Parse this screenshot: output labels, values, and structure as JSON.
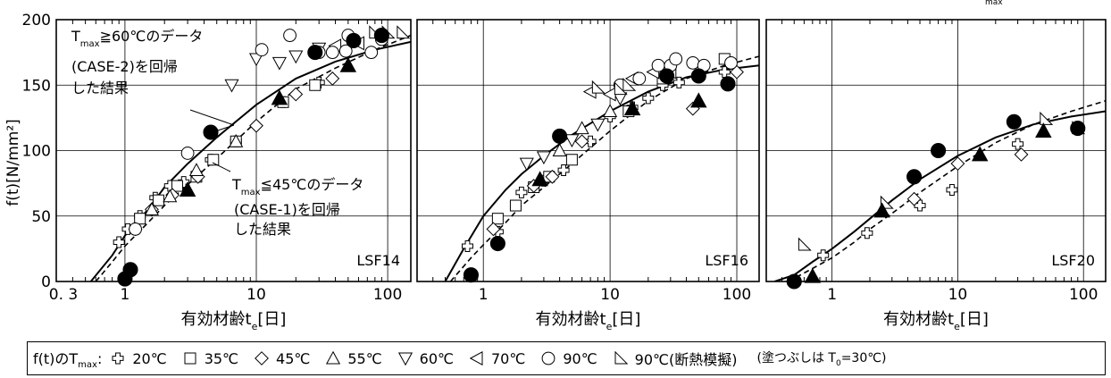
{
  "chart_data": [
    {
      "type": "scatter",
      "panel_label": "LSF14",
      "xscale": "log",
      "xlim": [
        0.3,
        150
      ],
      "ylim": [
        0,
        200
      ],
      "xticks": [
        "0. 3",
        "1",
        "10",
        "100"
      ],
      "yticks": [
        "0",
        "50",
        "100",
        "150",
        "200"
      ],
      "ylabel": "f(t)[N/mm²]",
      "xlabel": "有効材齢t_e[日]",
      "grid": true,
      "curve_case2": [
        [
          0.55,
          0
        ],
        [
          0.8,
          20
        ],
        [
          1,
          35
        ],
        [
          1.5,
          55
        ],
        [
          2,
          72
        ],
        [
          3,
          90
        ],
        [
          5,
          110
        ],
        [
          10,
          135
        ],
        [
          20,
          155
        ],
        [
          40,
          168
        ],
        [
          80,
          177
        ],
        [
          150,
          183
        ]
      ],
      "curve_case1": [
        [
          0.6,
          0
        ],
        [
          0.8,
          15
        ],
        [
          1,
          27
        ],
        [
          1.5,
          45
        ],
        [
          2,
          58
        ],
        [
          3,
          74
        ],
        [
          5,
          94
        ],
        [
          10,
          122
        ],
        [
          20,
          147
        ],
        [
          40,
          163
        ],
        [
          80,
          177
        ],
        [
          150,
          188
        ]
      ],
      "series": [
        {
          "temp": "20℃",
          "marker": "cross",
          "points": [
            [
              0.9,
              30
            ],
            [
              1.05,
              40
            ],
            [
              1.3,
              50
            ],
            [
              1.7,
              64
            ],
            [
              2.2,
              73
            ],
            [
              2.8,
              76
            ],
            [
              4.5,
              93
            ],
            [
              7,
              107
            ],
            [
              16,
              137
            ],
            [
              30,
              152
            ]
          ]
        },
        {
          "temp": "35℃",
          "marker": "square",
          "points": [
            [
              1.3,
              48
            ],
            [
              1.8,
              62
            ],
            [
              2.5,
              73
            ],
            [
              3.5,
              80
            ],
            [
              4.7,
              93
            ],
            [
              7,
              107
            ],
            [
              16,
              137
            ],
            [
              28,
              150
            ]
          ]
        },
        {
          "temp": "45℃",
          "marker": "diamond",
          "points": [
            [
              1.2,
              40
            ],
            [
              1.6,
              55
            ],
            [
              2.3,
              66
            ],
            [
              3.6,
              80
            ],
            [
              10,
              119
            ],
            [
              20,
              143
            ],
            [
              38,
              155
            ]
          ]
        },
        {
          "temp": "55℃",
          "marker": "triangle-up",
          "points": [
            [
              1.6,
              55
            ],
            [
              2.2,
              65
            ],
            [
              3.5,
              85
            ],
            [
              7,
              107
            ]
          ]
        },
        {
          "temp": "60℃",
          "marker": "triangle-down",
          "points": [
            [
              6.5,
              150
            ],
            [
              10,
              170
            ],
            [
              15,
              167
            ],
            [
              20,
              172
            ],
            [
              30,
              178
            ]
          ]
        },
        {
          "temp": "70℃",
          "marker": "triangle-left",
          "points": [
            [
              40,
              180
            ],
            [
              60,
              182
            ]
          ]
        },
        {
          "temp": "90℃",
          "marker": "circle",
          "points": [
            [
              1.2,
              40
            ],
            [
              3,
              98
            ],
            [
              11,
              177
            ],
            [
              18,
              188
            ],
            [
              30,
              175
            ],
            [
              38,
              175
            ],
            [
              48,
              176
            ],
            [
              50,
              188
            ],
            [
              75,
              175
            ],
            [
              90,
              185
            ]
          ]
        },
        {
          "temp": "90℃(断熱模擬)",
          "marker": "triangle-corner",
          "points": [
            [
              80,
              190
            ],
            [
              100,
              190
            ],
            [
              130,
              190
            ]
          ]
        },
        {
          "temp": "90℃ filled",
          "marker": "filled-circle",
          "points": [
            [
              1,
              2
            ],
            [
              1.1,
              9
            ],
            [
              4.5,
              114
            ],
            [
              28,
              175
            ],
            [
              55,
              184
            ],
            [
              90,
              188
            ]
          ]
        },
        {
          "temp": "55℃ filled",
          "marker": "filled-triangle",
          "points": [
            [
              3,
              70
            ],
            [
              15,
              140
            ],
            [
              50,
              165
            ]
          ]
        }
      ]
    },
    {
      "type": "scatter",
      "panel_label": "LSF16",
      "xscale": "log",
      "xlim": [
        0.3,
        150
      ],
      "ylim": [
        0,
        200
      ],
      "xticks": [
        "1",
        "10",
        "100"
      ],
      "xlabel": "有効材齢t_e[日]",
      "grid": true,
      "curve_case2": [
        [
          0.5,
          0
        ],
        [
          0.7,
          25
        ],
        [
          1,
          50
        ],
        [
          1.5,
          70
        ],
        [
          2,
          82
        ],
        [
          3,
          96
        ],
        [
          5,
          112
        ],
        [
          10,
          130
        ],
        [
          20,
          145
        ],
        [
          40,
          156
        ],
        [
          80,
          162
        ],
        [
          150,
          165
        ]
      ],
      "curve_case1": [
        [
          0.55,
          0
        ],
        [
          0.8,
          18
        ],
        [
          1,
          28
        ],
        [
          1.5,
          45
        ],
        [
          2,
          58
        ],
        [
          3,
          72
        ],
        [
          5,
          90
        ],
        [
          10,
          115
        ],
        [
          20,
          138
        ],
        [
          40,
          155
        ],
        [
          80,
          165
        ],
        [
          150,
          172
        ]
      ],
      "series": [
        {
          "temp": "20℃",
          "marker": "cross",
          "points": [
            [
              0.75,
              27
            ],
            [
              1.3,
              38
            ],
            [
              2,
              68
            ],
            [
              3,
              77
            ],
            [
              4.3,
              85
            ],
            [
              7,
              107
            ],
            [
              10,
              126
            ],
            [
              15,
              133
            ],
            [
              20,
              140
            ],
            [
              26,
              150
            ],
            [
              35,
              152
            ],
            [
              80,
              160
            ]
          ]
        },
        {
          "temp": "35℃",
          "marker": "square",
          "points": [
            [
              1.3,
              48
            ],
            [
              1.8,
              58
            ],
            [
              2.5,
              72
            ],
            [
              3.3,
              80
            ],
            [
              5,
              93
            ],
            [
              14,
              130
            ],
            [
              26,
              155
            ],
            [
              80,
              170
            ]
          ]
        },
        {
          "temp": "45℃",
          "marker": "diamond",
          "points": [
            [
              1.2,
              40
            ],
            [
              2.5,
              73
            ],
            [
              3.5,
              80
            ],
            [
              6,
              107
            ],
            [
              45,
              132
            ],
            [
              100,
              160
            ]
          ]
        },
        {
          "temp": "55℃",
          "marker": "triangle-up",
          "points": [
            [
              4,
              100
            ],
            [
              6,
              117
            ],
            [
              10,
              130
            ]
          ]
        },
        {
          "temp": "60℃",
          "marker": "triangle-down",
          "points": [
            [
              2.2,
              90
            ],
            [
              3,
              95
            ],
            [
              5,
              108
            ],
            [
              8,
              120
            ],
            [
              12,
              140
            ]
          ]
        },
        {
          "temp": "70℃",
          "marker": "triangle-left",
          "points": [
            [
              7,
              145
            ],
            [
              10,
              143
            ],
            [
              15,
              155
            ],
            [
              22,
              160
            ],
            [
              30,
              160
            ]
          ]
        },
        {
          "temp": "90℃",
          "marker": "circle",
          "points": [
            [
              12,
              150
            ],
            [
              17,
              155
            ],
            [
              24,
              165
            ],
            [
              30,
              165
            ],
            [
              33,
              170
            ],
            [
              45,
              167
            ],
            [
              55,
              165
            ],
            [
              90,
              167
            ]
          ]
        },
        {
          "temp": "90℃(断熱模擬)",
          "marker": "triangle-corner",
          "points": [
            [
              8,
              148
            ],
            [
              12,
              147
            ],
            [
              14,
              150
            ]
          ]
        },
        {
          "temp": "90℃ filled",
          "marker": "filled-circle",
          "points": [
            [
              0.8,
              5
            ],
            [
              1.3,
              29
            ],
            [
              4,
              111
            ],
            [
              28,
              157
            ],
            [
              50,
              157
            ],
            [
              85,
              151
            ]
          ]
        },
        {
          "temp": "55℃ filled",
          "marker": "filled-triangle",
          "points": [
            [
              2.8,
              78
            ],
            [
              15,
              132
            ],
            [
              50,
              138
            ]
          ]
        }
      ]
    },
    {
      "type": "scatter",
      "panel_label": "LSF20",
      "xscale": "log",
      "xlim": [
        0.3,
        150
      ],
      "ylim": [
        0,
        200
      ],
      "xticks": [
        "1",
        "10",
        "100"
      ],
      "xlabel": "有効材齢t_e[日]",
      "grid": true,
      "curve_case2": [
        [
          0.35,
          0
        ],
        [
          0.5,
          5
        ],
        [
          0.7,
          15
        ],
        [
          1,
          25
        ],
        [
          1.5,
          38
        ],
        [
          2,
          48
        ],
        [
          3,
          62
        ],
        [
          5,
          78
        ],
        [
          10,
          96
        ],
        [
          20,
          110
        ],
        [
          40,
          120
        ],
        [
          80,
          126
        ],
        [
          150,
          130
        ]
      ],
      "curve_case1": [
        [
          0.45,
          0
        ],
        [
          0.7,
          10
        ],
        [
          1,
          18
        ],
        [
          1.5,
          30
        ],
        [
          2,
          40
        ],
        [
          3,
          52
        ],
        [
          5,
          68
        ],
        [
          10,
          88
        ],
        [
          20,
          106
        ],
        [
          40,
          120
        ],
        [
          80,
          130
        ],
        [
          150,
          138
        ]
      ],
      "series": [
        {
          "temp": "20℃",
          "marker": "cross",
          "points": [
            [
              0.85,
              20
            ],
            [
              1.9,
              37
            ],
            [
              5,
              58
            ],
            [
              9,
              70
            ],
            [
              30,
              105
            ]
          ]
        },
        {
          "temp": "35℃",
          "marker": "square",
          "points": []
        },
        {
          "temp": "45℃",
          "marker": "diamond",
          "points": [
            [
              4.5,
              63
            ],
            [
              10,
              90
            ],
            [
              32,
              97
            ]
          ]
        },
        {
          "temp": "55℃",
          "marker": "triangle-up",
          "points": []
        },
        {
          "temp": "60℃",
          "marker": "triangle-down",
          "points": []
        },
        {
          "temp": "70℃",
          "marker": "triangle-left",
          "points": []
        },
        {
          "temp": "90℃",
          "marker": "circle",
          "points": []
        },
        {
          "temp": "90℃(断熱模擬)",
          "marker": "triangle-corner",
          "points": [
            [
              0.6,
              28
            ],
            [
              2.7,
              60
            ],
            [
              50,
              124
            ],
            [
              90,
              117
            ]
          ]
        },
        {
          "temp": "90℃ filled",
          "marker": "filled-circle",
          "points": [
            [
              0.5,
              0
            ],
            [
              4.5,
              80
            ],
            [
              7,
              100
            ],
            [
              28,
              122
            ],
            [
              90,
              117
            ]
          ]
        },
        {
          "temp": "55℃ filled",
          "marker": "filled-triangle",
          "points": [
            [
              0.7,
              4
            ],
            [
              2.5,
              54
            ],
            [
              15,
              97
            ],
            [
              48,
              115
            ]
          ]
        }
      ]
    }
  ],
  "annotations": {
    "case2_line1": "T",
    "case2_sub": "max",
    "case2_rest": "≧60℃のデータ",
    "case2_line2": "(CASE-2)を回帰",
    "case2_line3": "した結果",
    "case1_line1": "T",
    "case1_sub": "max",
    "case1_rest": "≦45℃のデータ",
    "case1_line2": "(CASE-1)を回帰",
    "case1_line3": "した結果",
    "corner_fragment": "max"
  },
  "legend": {
    "head_main": "f(t)のT",
    "head_sub": "max",
    "head_colon": ":",
    "items": [
      {
        "label": "20℃",
        "marker": "cross"
      },
      {
        "label": "35℃",
        "marker": "square"
      },
      {
        "label": "45℃",
        "marker": "diamond"
      },
      {
        "label": "55℃",
        "marker": "triangle-up"
      },
      {
        "label": "60℃",
        "marker": "triangle-down"
      },
      {
        "label": "70℃",
        "marker": "triangle-left"
      },
      {
        "label": "90℃",
        "marker": "circle"
      },
      {
        "label": "90℃(断熱模擬)",
        "marker": "triangle-corner"
      }
    ],
    "note_prefix": "(塗つぶしは T",
    "note_sub": "0",
    "note_suffix": "=30℃)"
  }
}
